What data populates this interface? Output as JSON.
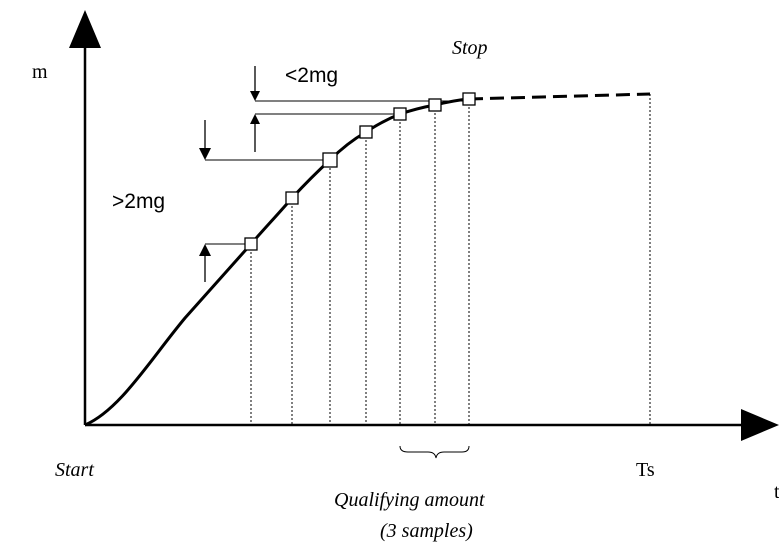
{
  "labels": {
    "y_axis": "m",
    "x_axis": "t",
    "start": "Start",
    "stop": "Stop",
    "ts": "Ts",
    "less_than": "<2mg",
    "greater_than": ">2mg",
    "qualifying_line1": "Qualifying amount",
    "qualifying_line2": "(3 samples)"
  },
  "colors": {
    "ink": "#000000",
    "background": "#ffffff"
  }
}
